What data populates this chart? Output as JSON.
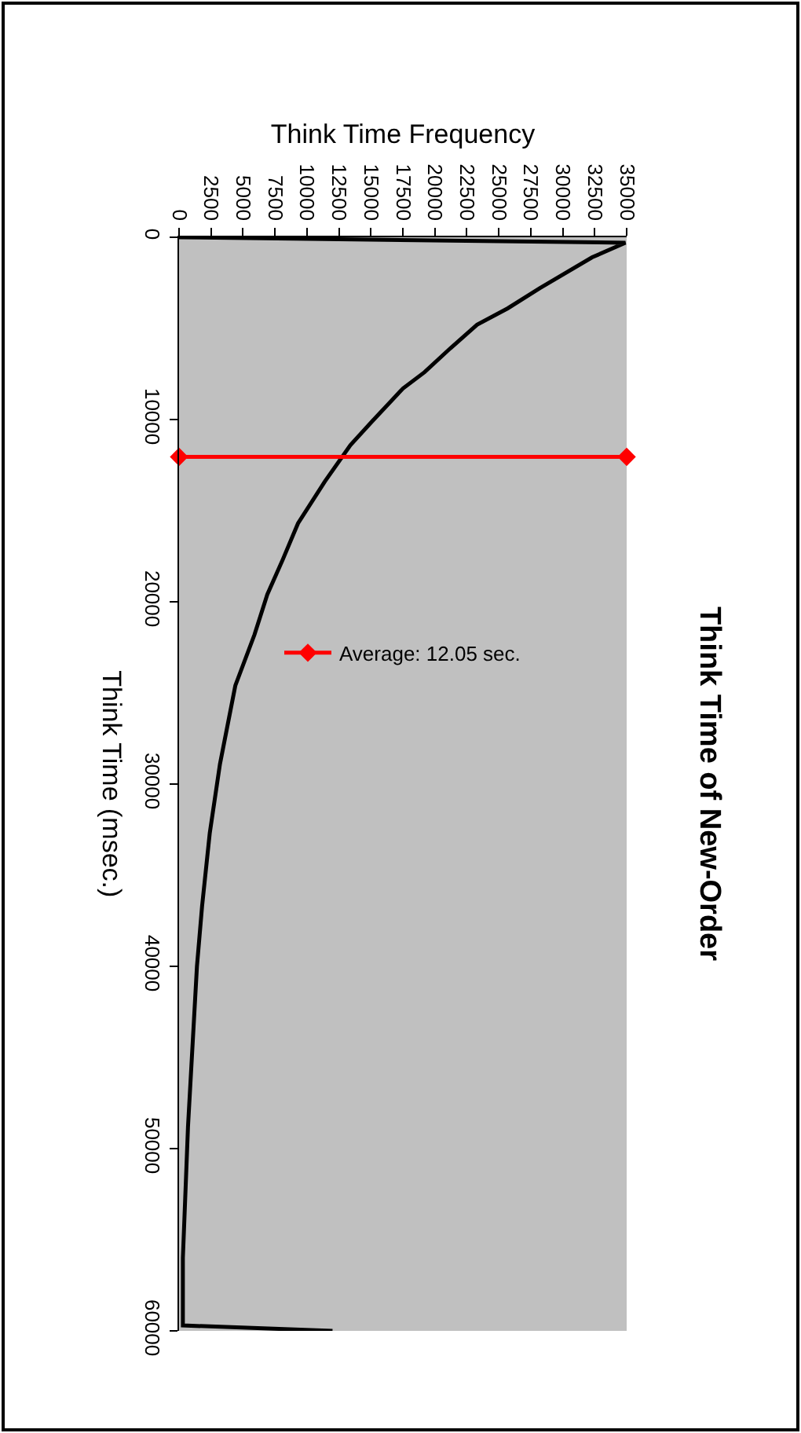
{
  "chart_data": {
    "type": "line",
    "title": "Think Time of New-Order",
    "xlabel": "Think Time Frequency",
    "ylabel": "Think Time (msec.)",
    "xlim": [
      0,
      35000
    ],
    "xticks": [
      0,
      2500,
      5000,
      7500,
      10000,
      12500,
      15000,
      17500,
      20000,
      22500,
      25000,
      27500,
      30000,
      32500,
      35000
    ],
    "ylim": [
      60000,
      0
    ],
    "yticks": [
      0,
      10000,
      20000,
      30000,
      40000,
      50000,
      60000
    ],
    "grid": false,
    "legend": "top",
    "series": [
      {
        "color": "#000000",
        "marker": "none",
        "x": [
          0,
          34900,
          32300,
          28200,
          25700,
          23300,
          21200,
          19200,
          17500,
          15100,
          13400,
          11400,
          9300,
          8100,
          6900,
          5900,
          4400,
          3200,
          2400,
          1800,
          1400,
          700,
          300,
          300,
          12000
        ],
        "values": [
          0,
          300,
          1100,
          2800,
          3900,
          4800,
          6100,
          7400,
          8300,
          10100,
          11400,
          13400,
          15700,
          17700,
          19600,
          21800,
          24600,
          28900,
          32700,
          36700,
          40000,
          48800,
          56000,
          59700,
          60000
        ]
      },
      {
        "name": "Average: 12.05 sec.",
        "color": "#ff0000",
        "marker": "diamond",
        "x": [
          0,
          35000
        ],
        "values": [
          12050,
          12050
        ]
      }
    ]
  }
}
